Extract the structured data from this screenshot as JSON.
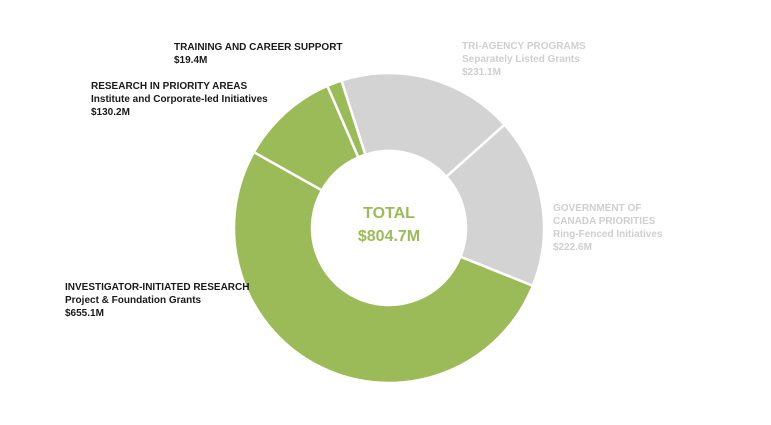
{
  "chart_data": {
    "type": "pie",
    "subtype": "donut",
    "center": {
      "title": "TOTAL",
      "value": "$804.7M"
    },
    "slices": [
      {
        "category": "TRI-AGENCY PROGRAMS",
        "sub": "Separately Listed Grants",
        "amount_label": "$231.1M",
        "value": 231.1,
        "color": "#d3d3d3",
        "label_color": "#cfcfcf"
      },
      {
        "category": "GOVERNMENT OF CANADA PRIORITIES",
        "category_line1": "GOVERNMENT OF",
        "category_line2": "CANADA PRIORITIES",
        "sub": "Ring-Fenced Initiatives",
        "amount_label": "$222.6M",
        "value": 222.6,
        "color": "#d3d3d3",
        "label_color": "#cfcfcf"
      },
      {
        "category": "INVESTIGATOR-INITIATED RESEARCH",
        "sub": "Project & Foundation Grants",
        "amount_label": "$655.1M",
        "value": 655.1,
        "color": "#9bbb59",
        "label_color": "#1a1a1a"
      },
      {
        "category": "RESEARCH IN PRIORITY AREAS",
        "sub": "Institute and Corporate-led Initiatives",
        "amount_label": "$130.2M",
        "value": 130.2,
        "color": "#9bbb59",
        "label_color": "#1a1a1a"
      },
      {
        "category": "TRAINING AND CAREER SUPPORT",
        "sub": "",
        "amount_label": "$19.4M",
        "value": 19.4,
        "color": "#9bbb59",
        "label_color": "#1a1a1a"
      }
    ],
    "legend": "none"
  }
}
